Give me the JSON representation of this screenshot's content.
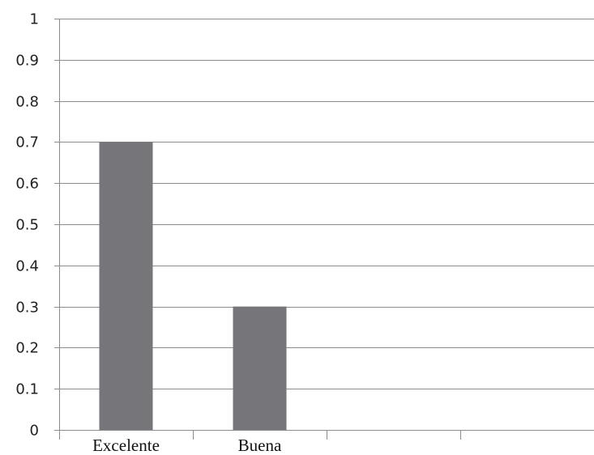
{
  "chart_data": {
    "type": "bar",
    "title": "",
    "xlabel": "",
    "ylabel": "",
    "categories": [
      "Excelente",
      "Buena",
      "",
      ""
    ],
    "values": [
      0.7,
      0.3,
      null,
      null
    ],
    "ylim": [
      0,
      1
    ],
    "yticks": [
      "0",
      "0.1",
      "0.2",
      "0.3",
      "0.4",
      "0.5",
      "0.6",
      "0.7",
      "0.8",
      "0.9",
      "1"
    ],
    "grid": true,
    "legend": "none",
    "bar_color": "#76767a",
    "grid_color": "#8c8c8c",
    "axis_color": "#8c8c8c"
  }
}
